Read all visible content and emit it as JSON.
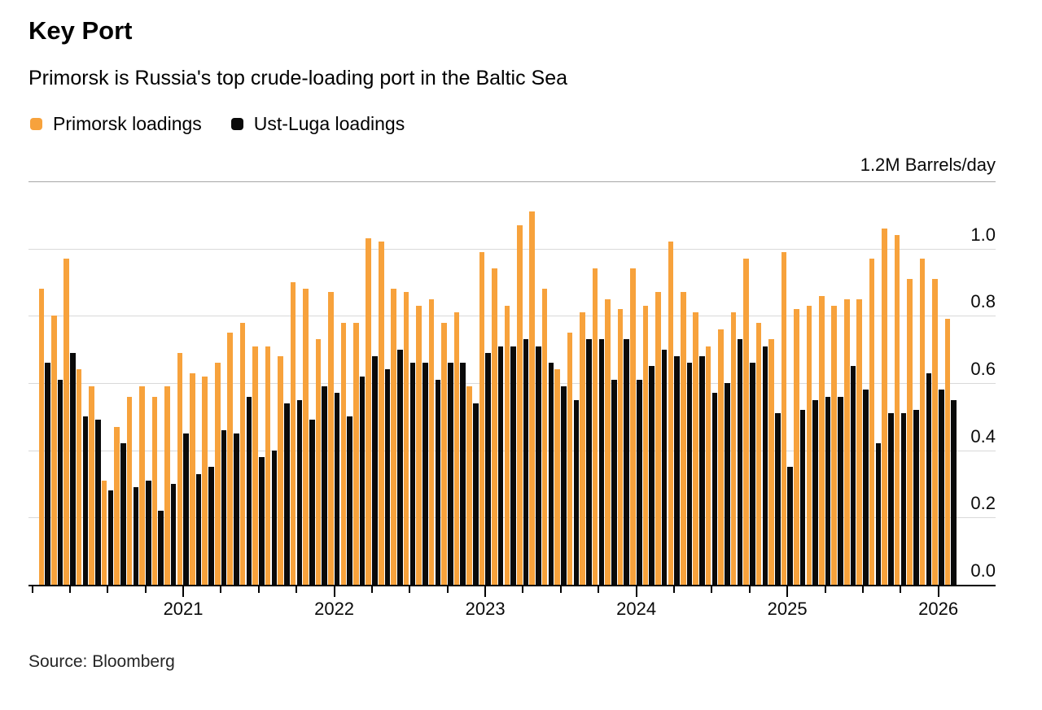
{
  "header": {
    "title": "Key Port",
    "subtitle": "Primorsk is Russia's top crude-loading port in the Baltic Sea"
  },
  "footer": {
    "source": "Source: Bloomberg"
  },
  "chart_data": {
    "type": "bar",
    "title": "Key Port",
    "subtitle": "Primorsk is Russia's top crude-loading port in the Baltic Sea",
    "unit": "M Barrels/day",
    "legend_position": "top-left",
    "grid": "horizontal",
    "ylim": [
      0,
      1.2
    ],
    "y_axis": {
      "top_label": "1.2M Barrels/day",
      "tick_labels": [
        {
          "value": 1.0,
          "label": "1.0"
        },
        {
          "value": 0.8,
          "label": "0.8"
        },
        {
          "value": 0.6,
          "label": "0.6"
        },
        {
          "value": 0.4,
          "label": "0.4"
        },
        {
          "value": 0.2,
          "label": "0.2"
        },
        {
          "value": 0.0,
          "label": "0.0"
        }
      ],
      "gridline_values": [
        0.2,
        0.4,
        0.6,
        0.8,
        1.0
      ],
      "top_rule_value": 1.2
    },
    "x_axis": {
      "years": [
        {
          "label": "2021",
          "month_index": 11
        },
        {
          "label": "2022",
          "month_index": 23
        },
        {
          "label": "2023",
          "month_index": 35
        },
        {
          "label": "2024",
          "month_index": 47
        },
        {
          "label": "2025",
          "month_index": 59
        },
        {
          "label": "2026",
          "month_index": 71
        }
      ],
      "minor_tick_every_months": 3
    },
    "months": [
      "2020-02",
      "2020-03",
      "2020-04",
      "2020-05",
      "2020-06",
      "2020-07",
      "2020-08",
      "2020-09",
      "2020-10",
      "2020-11",
      "2020-12",
      "2021-01",
      "2021-02",
      "2021-03",
      "2021-04",
      "2021-05",
      "2021-06",
      "2021-07",
      "2021-08",
      "2021-09",
      "2021-10",
      "2021-11",
      "2021-12",
      "2022-01",
      "2022-02",
      "2022-03",
      "2022-04",
      "2022-05",
      "2022-06",
      "2022-07",
      "2022-08",
      "2022-09",
      "2022-10",
      "2022-11",
      "2022-12",
      "2023-01",
      "2023-02",
      "2023-03",
      "2023-04",
      "2023-05",
      "2023-06",
      "2023-07",
      "2023-08",
      "2023-09",
      "2023-10",
      "2023-11",
      "2023-12",
      "2024-01",
      "2024-02",
      "2024-03",
      "2024-04",
      "2024-05",
      "2024-06",
      "2024-07",
      "2024-08",
      "2024-09",
      "2024-10",
      "2024-11",
      "2024-12",
      "2025-01",
      "2025-02",
      "2025-03",
      "2025-04",
      "2025-05",
      "2025-06",
      "2025-07",
      "2025-08",
      "2025-09",
      "2025-10",
      "2025-11",
      "2025-12",
      "2026-01",
      "2026-02"
    ],
    "series": [
      {
        "name": "Primorsk loadings",
        "color": "#F7A23C",
        "values": [
          0.88,
          0.8,
          0.97,
          0.64,
          0.59,
          0.31,
          0.47,
          0.56,
          0.59,
          0.56,
          0.59,
          0.69,
          0.63,
          0.62,
          0.66,
          0.75,
          0.78,
          0.71,
          0.71,
          0.68,
          0.9,
          0.88,
          0.73,
          0.87,
          0.78,
          0.78,
          1.03,
          1.02,
          0.88,
          0.87,
          0.83,
          0.85,
          0.78,
          0.81,
          0.59,
          0.99,
          0.94,
          0.83,
          1.07,
          1.11,
          0.88,
          0.64,
          0.75,
          0.81,
          0.94,
          0.85,
          0.82,
          0.94,
          0.83,
          0.87,
          1.02,
          0.87,
          0.81,
          0.71,
          0.76,
          0.81,
          0.97,
          0.78,
          0.73,
          0.99,
          0.82,
          0.83,
          0.86,
          0.83,
          0.85,
          0.85,
          0.97,
          1.06,
          1.04,
          0.91,
          0.97,
          0.91,
          0.79
        ]
      },
      {
        "name": "Ust-Luga loadings",
        "color": "#0A0A0A",
        "values": [
          0.66,
          0.61,
          0.69,
          0.5,
          0.49,
          0.28,
          0.42,
          0.29,
          0.31,
          0.22,
          0.3,
          0.45,
          0.33,
          0.35,
          0.46,
          0.45,
          0.56,
          0.38,
          0.4,
          0.54,
          0.55,
          0.49,
          0.59,
          0.57,
          0.5,
          0.62,
          0.68,
          0.64,
          0.7,
          0.66,
          0.66,
          0.61,
          0.66,
          0.66,
          0.54,
          0.69,
          0.71,
          0.71,
          0.73,
          0.71,
          0.66,
          0.59,
          0.55,
          0.73,
          0.73,
          0.61,
          0.73,
          0.61,
          0.65,
          0.7,
          0.68,
          0.66,
          0.68,
          0.57,
          0.6,
          0.73,
          0.66,
          0.71,
          0.51,
          0.35,
          0.52,
          0.55,
          0.56,
          0.56,
          0.65,
          0.58,
          0.42,
          0.51,
          0.51,
          0.52,
          0.63,
          0.58,
          0.55
        ]
      }
    ],
    "colors": {
      "primorsk": "#F7A23C",
      "ust_luga": "#0A0A0A",
      "gridline": "#D9D9D9",
      "top_rule": "#A6A6A6",
      "axis": "#000000"
    }
  }
}
